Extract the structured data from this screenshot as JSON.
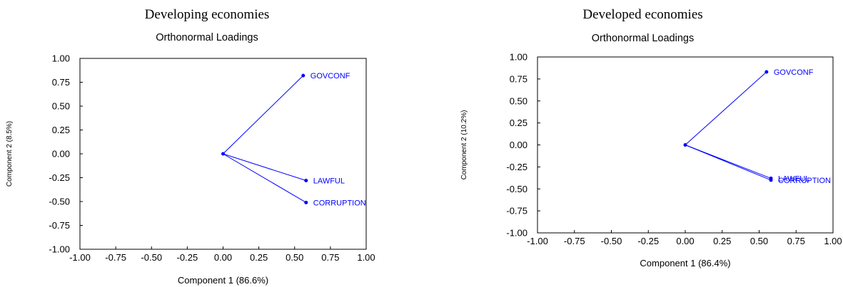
{
  "chart_data": [
    {
      "type": "scatter",
      "caption": "Developing economies",
      "title": "Orthonormal Loadings",
      "xlabel": "Component 1 (86.6%)",
      "ylabel": "Component 2 (8.5%)",
      "xlim": [
        -1.0,
        1.0
      ],
      "ylim": [
        -1.0,
        1.0
      ],
      "x_ticks": [
        "-1.00",
        "-0.75",
        "-0.50",
        "-0.25",
        "0.00",
        "0.25",
        "0.50",
        "0.75",
        "1.00"
      ],
      "y_ticks": [
        "1.00",
        "0.75",
        "0.50",
        "0.25",
        "0.00",
        "-0.25",
        "-0.50",
        "-0.75",
        "-1.00"
      ],
      "grid": false,
      "line_color": "#0000ff",
      "origin": [
        0.0,
        0.0
      ],
      "points": [
        {
          "label": "GOVCONF",
          "x": 0.56,
          "y": 0.82
        },
        {
          "label": "LAWFUL",
          "x": 0.58,
          "y": -0.28
        },
        {
          "label": "CORRUPTION",
          "x": 0.58,
          "y": -0.51
        }
      ]
    },
    {
      "type": "scatter",
      "caption": "Developed economies",
      "title": "Orthonormal Loadings",
      "xlabel": "Component 1 (86.4%)",
      "ylabel": "Component 2 (10.2%)",
      "xlim": [
        -1.0,
        1.0
      ],
      "ylim": [
        -1.0,
        1.0
      ],
      "x_ticks": [
        "-1.00",
        "-0.75",
        "-0.50",
        "-0.25",
        "0.00",
        "0.25",
        "0.50",
        "0.75",
        "1.00"
      ],
      "y_ticks": [
        "1.00",
        "0.75",
        "0.50",
        "0.25",
        "0.00",
        "-0.25",
        "-0.50",
        "-0.75",
        "-1.00"
      ],
      "grid": false,
      "line_color": "#0000ff",
      "origin": [
        0.0,
        0.0
      ],
      "points": [
        {
          "label": "GOVCONF",
          "x": 0.55,
          "y": 0.83
        },
        {
          "label": "LAWFUL",
          "x": 0.58,
          "y": -0.38
        },
        {
          "label": "CORRUPTION",
          "x": 0.58,
          "y": -0.4
        }
      ]
    }
  ]
}
